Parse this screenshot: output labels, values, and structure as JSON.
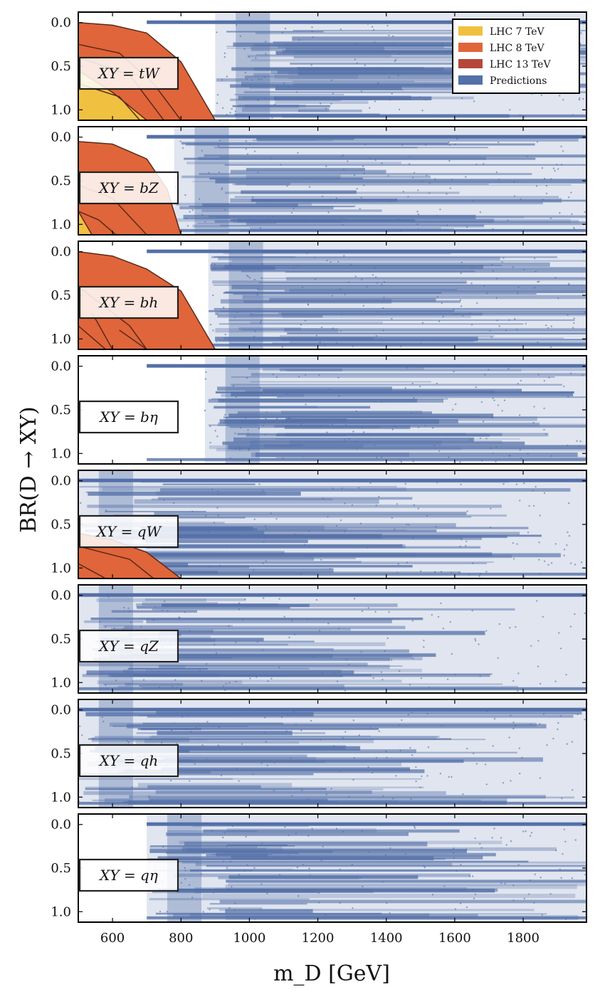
{
  "chart_data": {
    "type": "scatter",
    "xlabel": "m_D [GeV]",
    "ylabel": "BR(D → XY)",
    "xlim": [
      500,
      1985
    ],
    "ylim": [
      1.12,
      -0.12
    ],
    "x_ticks": [
      600,
      800,
      1000,
      1200,
      1400,
      1600,
      1800
    ],
    "y_ticks": [
      0.0,
      0.5,
      1.0
    ],
    "y_tick_labels": [
      "0.0",
      "0.5",
      "1.0"
    ],
    "legend": {
      "position": "top-right",
      "entries": [
        {
          "label": "LHC 7 TeV",
          "color": "#f0c040"
        },
        {
          "label": "LHC 8 TeV",
          "color": "#e0653a"
        },
        {
          "label": "LHC 13 TeV",
          "color": "#b5473a"
        },
        {
          "label": "Predictions",
          "color": "#5470a8"
        }
      ]
    },
    "panels": [
      {
        "label": "XY = tW",
        "points_start": 900,
        "exclusion_8tev": [
          [
            500,
            0.0
          ],
          [
            600,
            0.03
          ],
          [
            700,
            0.12
          ],
          [
            800,
            0.45
          ],
          [
            900,
            1.12
          ],
          [
            500,
            1.12
          ]
        ],
        "exclusion_7tev": [
          [
            500,
            0.55
          ],
          [
            600,
            0.8
          ],
          [
            700,
            1.12
          ],
          [
            500,
            1.12
          ]
        ],
        "excl_lines": [
          [
            [
              500,
              0.4
            ],
            [
              650,
              0.6
            ],
            [
              750,
              1.12
            ]
          ],
          [
            [
              500,
              0.7
            ],
            [
              620,
              0.85
            ],
            [
              680,
              1.12
            ]
          ],
          [
            [
              500,
              0.25
            ],
            [
              620,
              0.35
            ],
            [
              720,
              0.7
            ],
            [
              800,
              1.12
            ]
          ]
        ]
      },
      {
        "label": "XY = bZ",
        "points_start": 780,
        "exclusion_8tev": [
          [
            500,
            0.05
          ],
          [
            600,
            0.08
          ],
          [
            700,
            0.25
          ],
          [
            760,
            0.6
          ],
          [
            800,
            1.12
          ],
          [
            500,
            1.12
          ]
        ],
        "exclusion_7tev": [
          [
            500,
            0.85
          ],
          [
            540,
            1.12
          ],
          [
            500,
            1.12
          ]
        ],
        "excl_lines": [
          [
            [
              500,
              0.55
            ],
            [
              600,
              0.7
            ],
            [
              700,
              1.12
            ]
          ],
          [
            [
              500,
              0.85
            ],
            [
              560,
              0.95
            ],
            [
              610,
              1.12
            ]
          ]
        ]
      },
      {
        "label": "XY = bh",
        "points_start": 880,
        "exclusion_8tev": [
          [
            500,
            0.0
          ],
          [
            600,
            0.05
          ],
          [
            700,
            0.2
          ],
          [
            800,
            0.45
          ],
          [
            900,
            1.12
          ],
          [
            500,
            1.12
          ]
        ],
        "exclusion_7tev": [],
        "excl_lines": [
          [
            [
              500,
              0.4
            ],
            [
              650,
              0.85
            ],
            [
              700,
              1.12
            ]
          ],
          [
            [
              540,
              0.7
            ],
            [
              600,
              1.12
            ]
          ],
          [
            [
              620,
              0.9
            ],
            [
              700,
              1.12
            ]
          ],
          [
            [
              500,
              0.85
            ],
            [
              580,
              1.12
            ]
          ]
        ]
      },
      {
        "label": "XY = bη",
        "points_start": 870,
        "exclusion_8tev": [],
        "exclusion_7tev": [],
        "excl_lines": []
      },
      {
        "label": "XY = qW",
        "points_start": 500,
        "exclusion_8tev": [
          [
            500,
            0.6
          ],
          [
            600,
            0.68
          ],
          [
            700,
            0.82
          ],
          [
            800,
            1.12
          ],
          [
            500,
            1.12
          ]
        ],
        "exclusion_7tev": [],
        "excl_lines": [
          [
            [
              500,
              0.75
            ],
            [
              650,
              0.9
            ],
            [
              720,
              1.12
            ]
          ],
          [
            [
              500,
              0.95
            ],
            [
              580,
              1.12
            ]
          ]
        ]
      },
      {
        "label": "XY = qZ",
        "points_start": 500,
        "exclusion_8tev": [],
        "exclusion_7tev": [],
        "excl_lines": []
      },
      {
        "label": "XY = qh",
        "points_start": 500,
        "exclusion_8tev": [],
        "exclusion_7tev": [],
        "excl_lines": []
      },
      {
        "label": "XY = qη",
        "points_start": 700,
        "exclusion_8tev": [],
        "exclusion_7tev": [],
        "excl_lines": []
      }
    ]
  }
}
